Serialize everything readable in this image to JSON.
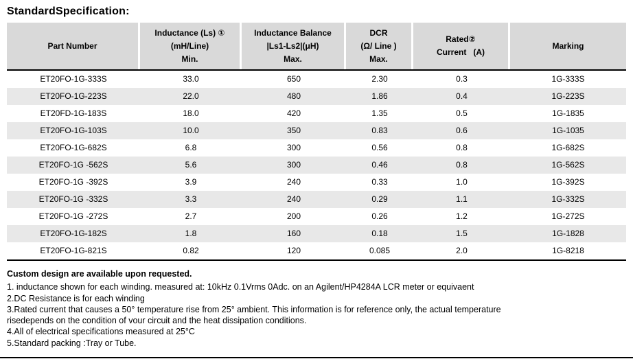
{
  "page": {
    "title": "StandardSpecification:"
  },
  "table": {
    "headers": [
      {
        "lines": [
          "Part Number"
        ]
      },
      {
        "lines": [
          "Inductance (Ls) ①",
          "(mH/Line)",
          "Min."
        ]
      },
      {
        "lines": [
          "Inductance Balance",
          "|Ls1-Ls2|(μH)",
          "Max."
        ]
      },
      {
        "lines": [
          "DCR",
          "(Ω/ Line )",
          "Max."
        ]
      },
      {
        "lines": [
          "Rated②",
          "Current   (A)"
        ]
      },
      {
        "lines": [
          "Marking"
        ]
      }
    ],
    "columns": [
      "part_number",
      "inductance_min",
      "inductance_balance_max",
      "dcr_max",
      "rated_current",
      "marking"
    ],
    "rows": [
      [
        "ET20FO-1G-333S",
        "33.0",
        "650",
        "2.30",
        "0.3",
        "1G-333S"
      ],
      [
        "ET20FO-1G-223S",
        "22.0",
        "480",
        "1.86",
        "0.4",
        "1G-223S"
      ],
      [
        "ET20FD-1G-183S",
        "18.0",
        "420",
        "1.35",
        "0.5",
        "1G-1835"
      ],
      [
        "ET20FO-1G-103S",
        "10.0",
        "350",
        "0.83",
        "0.6",
        "1G-1035"
      ],
      [
        "ET20FO-1G-682S",
        "6.8",
        "300",
        "0.56",
        "0.8",
        "1G-682S"
      ],
      [
        "ET20FO-1G -562S",
        "5.6",
        "300",
        "0.46",
        "0.8",
        "1G-562S"
      ],
      [
        "ET20FO-1G -392S",
        "3.9",
        "240",
        "0.33",
        "1.0",
        "1G-392S"
      ],
      [
        "ET20FO-1G -332S",
        "3.3",
        "240",
        "0.29",
        "1.1",
        "1G-332S"
      ],
      [
        "ET20FO-1G -272S",
        "2.7",
        "200",
        "0.26",
        "1.2",
        "1G-272S"
      ],
      [
        "ET20FO-1G-182S",
        "1.8",
        "160",
        "0.18",
        "1.5",
        "1G-1828"
      ],
      [
        "ET20FO-1G-821S",
        "0.82",
        "120",
        "0.085",
        "2.0",
        "1G-8218"
      ]
    ]
  },
  "notes": {
    "heading": "Custom design are available upon requested.",
    "lines": [
      "1. inductance shown for each winding. measured at: 10kHz 0.1Vrms 0Adc. on an Agilent/HP4284A LCR meter or equivaent",
      "2.DC Resistance is for each winding",
      "3.Rated current that causes a 50° temperature rise from 25° ambient. This information is for reference only, the actual temperature",
      "risedepends on the condition of vour circuit and the heat dissipation conditions.",
      "4.All of electrical specifications measured at 25°C",
      "5.Standard packing :Tray or Tube."
    ]
  },
  "colors": {
    "header_bg": "#d9d9d9",
    "alt_row_bg": "#e8e8e8",
    "rule": "#000000"
  }
}
